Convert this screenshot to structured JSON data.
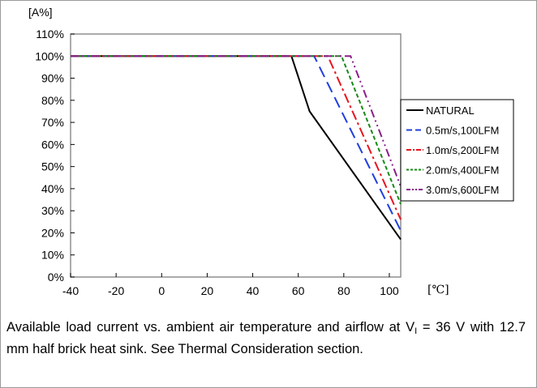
{
  "chart_data": {
    "type": "line",
    "ylabel": "[A%]",
    "xlabel": "[℃]",
    "xlim": [
      -40,
      105
    ],
    "ylim": [
      0,
      110
    ],
    "x_ticks": [
      -40,
      -20,
      0,
      20,
      40,
      60,
      80,
      100
    ],
    "x_tick_labels": [
      "-40",
      "-20",
      "0",
      "20",
      "40",
      "60",
      "80",
      "100"
    ],
    "y_ticks": [
      0,
      10,
      20,
      30,
      40,
      50,
      60,
      70,
      80,
      90,
      100,
      110
    ],
    "y_tick_labels": [
      "0%",
      "10%",
      "20%",
      "30%",
      "40%",
      "50%",
      "60%",
      "70%",
      "80%",
      "90%",
      "100%",
      "110%"
    ],
    "grid": false,
    "legend_placement": "right",
    "series": [
      {
        "name": "NATURAL",
        "color": "#000000",
        "dash": "solid",
        "x": [
          -40,
          57,
          65,
          105
        ],
        "y": [
          100,
          100,
          75,
          17
        ]
      },
      {
        "name": "0.5m/s,100LFM",
        "color": "#1f3fe0",
        "dash": "long-dash",
        "x": [
          -40,
          67,
          105
        ],
        "y": [
          100,
          100,
          21
        ]
      },
      {
        "name": "1.0m/s,200LFM",
        "color": "#e8141e",
        "dash": "dash-dot",
        "x": [
          -40,
          73,
          105
        ],
        "y": [
          100,
          100,
          26
        ]
      },
      {
        "name": "2.0m/s,400LFM",
        "color": "#178a17",
        "dash": "short-dash",
        "x": [
          -40,
          79,
          105
        ],
        "y": [
          100,
          100,
          33
        ]
      },
      {
        "name": "3.0m/s,600LFM",
        "color": "#8a1f8a",
        "dash": "dash-dot-dot",
        "x": [
          -40,
          83,
          105
        ],
        "y": [
          100,
          100,
          41
        ]
      }
    ]
  },
  "caption": {
    "text_before_sub": "Available load current vs. ambient air temperature and airflow at V",
    "sub": "I",
    "text_after_sub": " = 36 V with 12.7 mm half brick heat sink. See Thermal Consideration section."
  }
}
